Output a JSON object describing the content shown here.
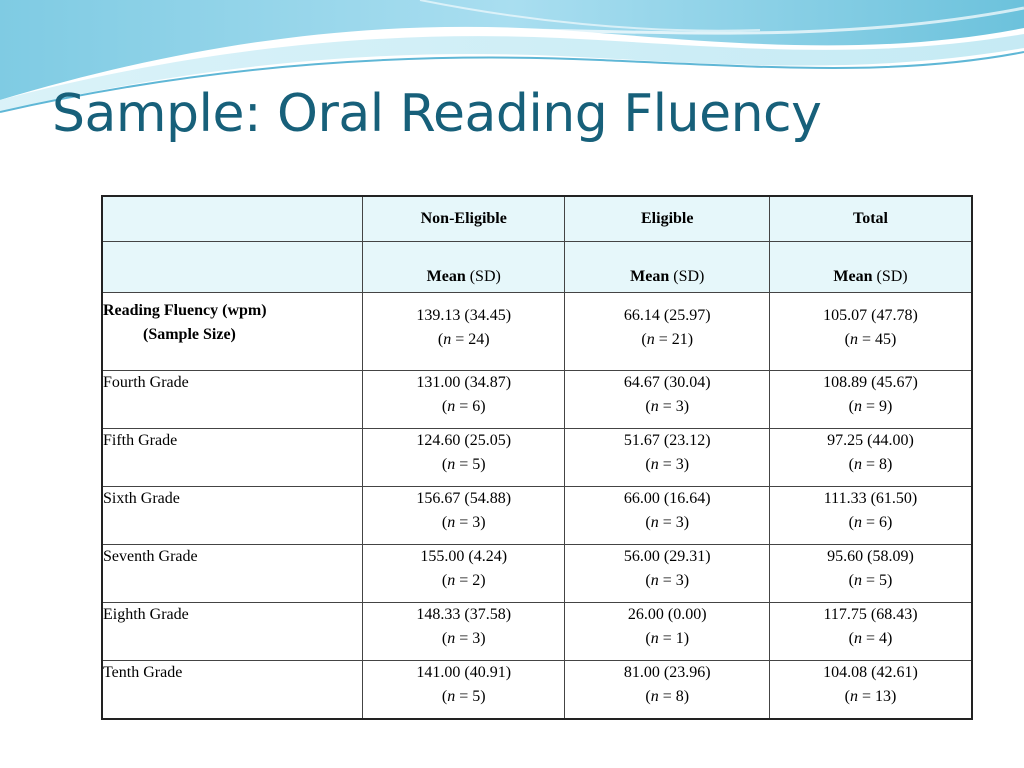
{
  "slide": {
    "title": "Sample: Oral Reading Fluency"
  },
  "table": {
    "group_headers": [
      "Non-Eligible",
      "Eligible",
      "Total"
    ],
    "stat_header": {
      "strong": "Mean",
      "rest": " (SD)"
    },
    "summary_row": {
      "label_line1": "Reading Fluency (wpm)",
      "label_line2": "(Sample Size)",
      "cells": [
        {
          "stat": "139.13 (34.45)",
          "n_open": "(",
          "n_var": "n",
          "n_val": " = 24)"
        },
        {
          "stat": "66.14 (25.97)",
          "n_open": "(",
          "n_var": "n",
          "n_val": " = 21)"
        },
        {
          "stat": "105.07 (47.78)",
          "n_open": "(",
          "n_var": "n",
          "n_val": " = 45)"
        }
      ]
    },
    "rows": [
      {
        "label": "Fourth Grade",
        "cells": [
          {
            "stat": "131.00 (34.87)",
            "n_open": "(",
            "n_var": "n",
            "n_val": " = 6)"
          },
          {
            "stat": "64.67 (30.04)",
            "n_open": "(",
            "n_var": "n",
            "n_val": " = 3)"
          },
          {
            "stat": "108.89 (45.67)",
            "n_open": "(",
            "n_var": "n",
            "n_val": " = 9)"
          }
        ]
      },
      {
        "label": "Fifth Grade",
        "cells": [
          {
            "stat": "124.60 (25.05)",
            "n_open": "(",
            "n_var": "n",
            "n_val": " = 5)"
          },
          {
            "stat": "51.67 (23.12)",
            "n_open": "(",
            "n_var": "n",
            "n_val": " = 3)"
          },
          {
            "stat": "97.25 (44.00)",
            "n_open": "(",
            "n_var": "n",
            "n_val": " = 8)"
          }
        ]
      },
      {
        "label": "Sixth Grade",
        "cells": [
          {
            "stat": "156.67 (54.88)",
            "n_open": "(",
            "n_var": "n",
            "n_val": " = 3)"
          },
          {
            "stat": "66.00 (16.64)",
            "n_open": "(",
            "n_var": "n",
            "n_val": " = 3)"
          },
          {
            "stat": "111.33 (61.50)",
            "n_open": "(",
            "n_var": "n",
            "n_val": " = 6)"
          }
        ]
      },
      {
        "label": "Seventh Grade",
        "cells": [
          {
            "stat": "155.00 (4.24)",
            "n_open": "(",
            "n_var": "n",
            "n_val": " = 2)"
          },
          {
            "stat": "56.00 (29.31)",
            "n_open": "(",
            "n_var": "n",
            "n_val": " = 3)"
          },
          {
            "stat": "95.60 (58.09)",
            "n_open": "(",
            "n_var": "n",
            "n_val": " = 5)"
          }
        ]
      },
      {
        "label": "Eighth Grade",
        "cells": [
          {
            "stat": "148.33 (37.58)",
            "n_open": "(",
            "n_var": "n",
            "n_val": " = 3)"
          },
          {
            "stat": "26.00 (0.00)",
            "n_open": "(",
            "n_var": "n",
            "n_val": " = 1)"
          },
          {
            "stat": "117.75 (68.43)",
            "n_open": "(",
            "n_var": "n",
            "n_val": " = 4)"
          }
        ]
      },
      {
        "label": "Tenth Grade",
        "cells": [
          {
            "stat": "141.00 (40.91)",
            "n_open": "(",
            "n_var": "n",
            "n_val": " = 5)"
          },
          {
            "stat": "81.00 (23.96)",
            "n_open": "(",
            "n_var": "n",
            "n_val": " = 8)"
          },
          {
            "stat": "104.08 (42.61)",
            "n_open": "(",
            "n_var": "n",
            "n_val": " = 13)"
          }
        ]
      }
    ]
  },
  "theme": {
    "title_color": "#17607a",
    "header_fill": "#e6f7fa",
    "banner_colors": [
      "#8fd3e8",
      "#bfe8f2",
      "#5fb7d6"
    ]
  }
}
